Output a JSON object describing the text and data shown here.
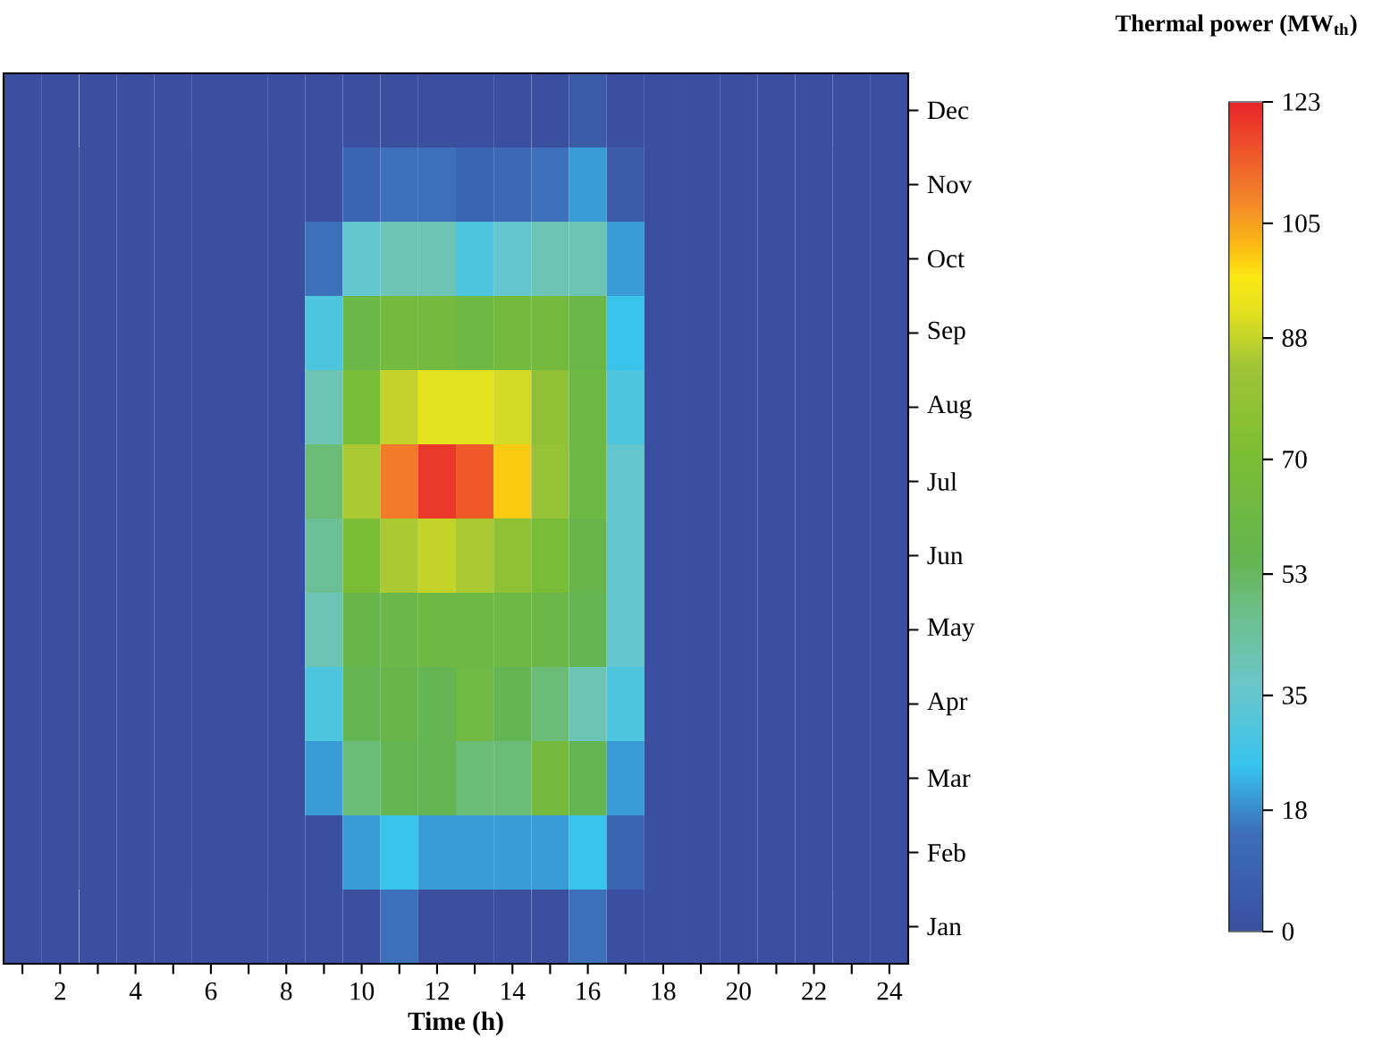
{
  "chart_data": {
    "type": "heatmap",
    "xlabel": "Time (h)",
    "clabel": "Thermal power (MW$_{th}$)",
    "categories": [
      null,
      "2",
      null,
      "4",
      null,
      "6",
      null,
      "8",
      null,
      "10",
      null,
      "12",
      null,
      "14",
      null,
      "16",
      null,
      "18",
      null,
      "20",
      null,
      "22",
      null,
      "24"
    ],
    "y_categories": [
      "Dec",
      "Nov",
      "Oct",
      "Sep",
      "Aug",
      "Jul",
      "Jun",
      "May",
      "Apr",
      "Mar",
      "Feb",
      "Jan"
    ],
    "cells": [
      [
        0,
        0,
        0,
        0,
        0,
        0,
        0,
        0,
        0,
        0,
        0,
        0,
        0,
        0,
        0,
        5,
        0,
        0,
        0,
        0,
        0,
        0,
        0,
        0
      ],
      [
        0,
        0,
        0,
        0,
        0,
        0,
        0,
        0,
        0,
        10,
        15,
        15,
        10,
        12,
        15,
        20,
        5,
        0,
        0,
        0,
        0,
        0,
        0,
        0
      ],
      [
        0,
        0,
        0,
        0,
        0,
        0,
        0,
        0,
        15,
        35,
        40,
        40,
        30,
        35,
        40,
        40,
        20,
        0,
        0,
        0,
        0,
        0,
        0,
        0
      ],
      [
        0,
        0,
        0,
        0,
        0,
        0,
        0,
        0,
        30,
        60,
        65,
        65,
        62,
        65,
        65,
        60,
        25,
        0,
        0,
        0,
        0,
        0,
        0,
        0
      ],
      [
        0,
        0,
        0,
        0,
        0,
        0,
        0,
        0,
        40,
        68,
        88,
        92,
        92,
        90,
        78,
        62,
        30,
        0,
        0,
        0,
        0,
        0,
        0,
        0
      ],
      [
        0,
        0,
        0,
        0,
        0,
        0,
        0,
        0,
        50,
        85,
        110,
        120,
        115,
        100,
        80,
        62,
        35,
        0,
        0,
        0,
        0,
        0,
        0,
        0
      ],
      [
        0,
        0,
        0,
        0,
        0,
        0,
        0,
        0,
        45,
        70,
        85,
        88,
        85,
        78,
        68,
        58,
        35,
        0,
        0,
        0,
        0,
        0,
        0,
        0
      ],
      [
        0,
        0,
        0,
        0,
        0,
        0,
        0,
        0,
        40,
        58,
        60,
        62,
        62,
        62,
        60,
        55,
        35,
        0,
        0,
        0,
        0,
        0,
        0,
        0
      ],
      [
        0,
        0,
        0,
        0,
        0,
        0,
        0,
        0,
        30,
        55,
        58,
        55,
        63,
        55,
        50,
        40,
        30,
        0,
        0,
        0,
        0,
        0,
        0,
        0
      ],
      [
        0,
        0,
        0,
        0,
        0,
        0,
        0,
        0,
        20,
        50,
        55,
        55,
        50,
        50,
        65,
        55,
        20,
        0,
        0,
        0,
        0,
        0,
        0,
        0
      ],
      [
        0,
        0,
        0,
        0,
        0,
        0,
        0,
        0,
        0,
        20,
        25,
        20,
        20,
        20,
        20,
        25,
        10,
        0,
        0,
        0,
        0,
        0,
        0,
        0
      ],
      [
        0,
        0,
        0,
        0,
        0,
        0,
        0,
        0,
        0,
        0,
        15,
        0,
        0,
        0,
        0,
        15,
        0,
        0,
        0,
        0,
        0,
        0,
        0,
        0
      ]
    ],
    "clim": [
      0,
      123
    ],
    "cticks": [
      0,
      18,
      35,
      53,
      70,
      88,
      105,
      123
    ]
  }
}
